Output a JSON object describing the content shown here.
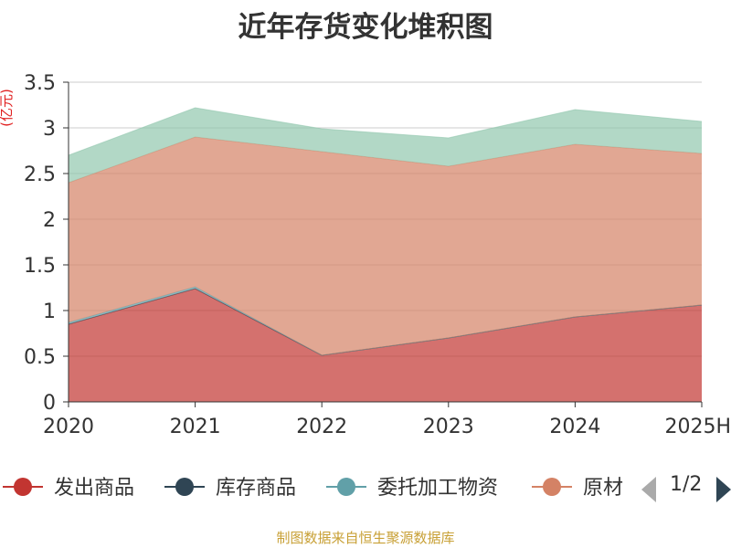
{
  "source_text": "制图数据来自恒生聚源数据库",
  "legend_page": "1/2",
  "chart_data": {
    "type": "area",
    "stacked": true,
    "title": "近年存货变化堆积图",
    "ylabel": "(亿元)",
    "xlabel": "",
    "categories": [
      "2020",
      "2021",
      "2022",
      "2023",
      "2024",
      "2025H"
    ],
    "ylim": [
      0,
      3.5
    ],
    "yticks": [
      0,
      0.5,
      1,
      1.5,
      2,
      2.5,
      3,
      3.5
    ],
    "ytick_labels": [
      "0",
      "0.5",
      "1",
      "1.5",
      "2",
      "2.5",
      "3",
      "3.5"
    ],
    "grid": true,
    "legend_position": "bottom",
    "series": [
      {
        "name": "发出商品",
        "color": "#c23531",
        "values": [
          0.85,
          1.24,
          0.51,
          0.7,
          0.93,
          1.06
        ]
      },
      {
        "name": "库存商品",
        "color": "#2f4554",
        "values": [
          0.0,
          0.0,
          0.0,
          0.0,
          0.0,
          0.0
        ]
      },
      {
        "name": "委托加工物资",
        "color": "#61a0a8",
        "values": [
          0.02,
          0.02,
          0.0,
          0.0,
          0.0,
          0.0
        ]
      },
      {
        "name": "原材料",
        "color": "#d48265",
        "values": [
          1.53,
          1.64,
          2.23,
          1.88,
          1.89,
          1.66
        ]
      },
      {
        "name": "",
        "color": "#91c7ae",
        "values": [
          0.3,
          0.32,
          0.25,
          0.31,
          0.38,
          0.35
        ]
      }
    ],
    "legend_visible": [
      {
        "label": "发出商品",
        "color": "#c23531"
      },
      {
        "label": "库存商品",
        "color": "#2f4554"
      },
      {
        "label": "委托加工物资",
        "color": "#61a0a8"
      },
      {
        "label": "原材",
        "color": "#d48265"
      }
    ]
  }
}
